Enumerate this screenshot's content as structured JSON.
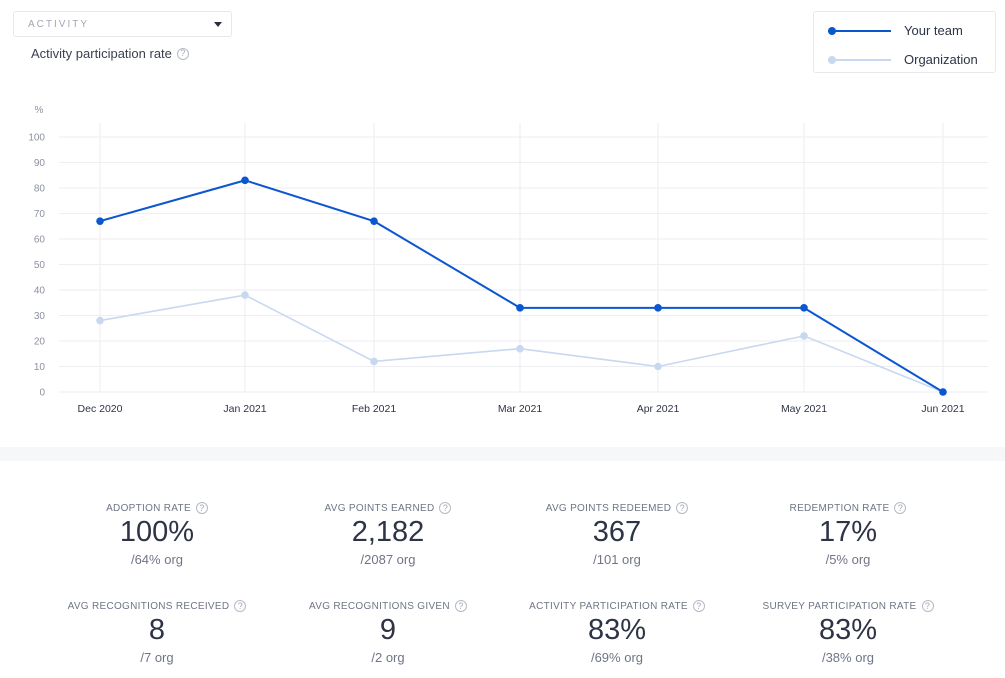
{
  "dropdown": {
    "label": "ACTIVITY"
  },
  "chart_header": {
    "title": "Activity participation rate"
  },
  "legend": [
    {
      "label": "Your team",
      "color": "#0b57d0"
    },
    {
      "label": "Organization",
      "color": "#c8d8f0"
    }
  ],
  "chart_data": {
    "type": "line",
    "ylabel": "%",
    "ylim": [
      0,
      100
    ],
    "yticks": [
      0,
      10,
      20,
      30,
      40,
      50,
      60,
      70,
      80,
      90,
      100
    ],
    "categories": [
      "Dec 2020",
      "Jan 2021",
      "Feb 2021",
      "Mar 2021",
      "Apr 2021",
      "May 2021",
      "Jun 2021"
    ],
    "grid": true,
    "legend_position": "top-right",
    "series": [
      {
        "name": "Your team",
        "color": "#0b57d0",
        "values": [
          67,
          83,
          67,
          33,
          33,
          33,
          0
        ]
      },
      {
        "name": "Organization",
        "color": "#c8d8f0",
        "values": [
          28,
          38,
          12,
          17,
          10,
          22,
          0
        ]
      }
    ]
  },
  "stats": [
    {
      "label": "ADOPTION RATE",
      "value": "100%",
      "sub": "/64% org"
    },
    {
      "label": "AVG POINTS EARNED",
      "value": "2,182",
      "sub": "/2087 org"
    },
    {
      "label": "AVG POINTS REDEEMED",
      "value": "367",
      "sub": "/101 org"
    },
    {
      "label": "REDEMPTION RATE",
      "value": "17%",
      "sub": "/5% org"
    },
    {
      "label": "AVG RECOGNITIONS RECEIVED",
      "value": "8",
      "sub": "/7 org"
    },
    {
      "label": "AVG RECOGNITIONS GIVEN",
      "value": "9",
      "sub": "/2 org"
    },
    {
      "label": "ACTIVITY PARTICIPATION RATE",
      "value": "83%",
      "sub": "/69% org"
    },
    {
      "label": "SURVEY PARTICIPATION RATE",
      "value": "83%",
      "sub": "/38% org"
    }
  ],
  "help_icon": "question-mark-icon"
}
